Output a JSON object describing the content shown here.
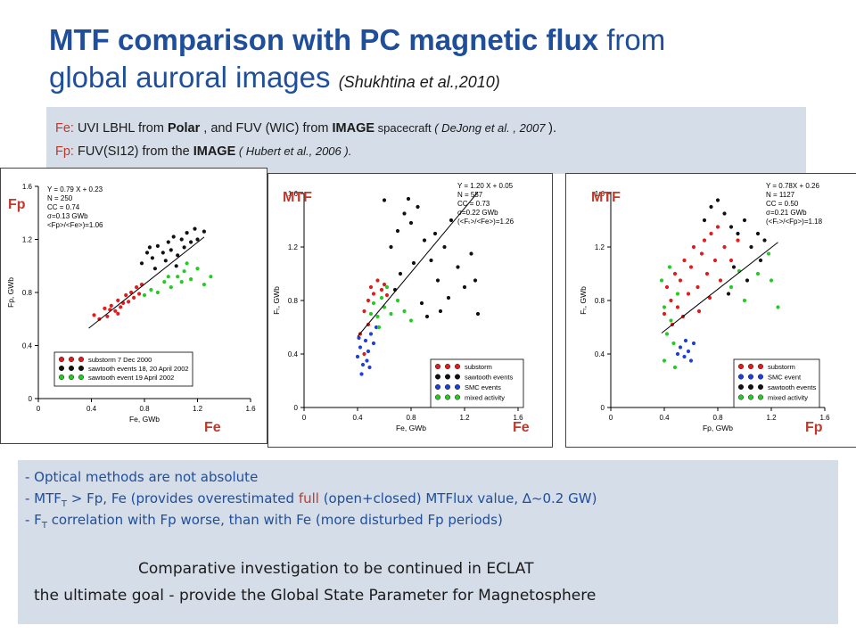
{
  "title": {
    "bold": "MTF comparison with PC magnetic flux",
    "rest1": " from",
    "line2": "global auroral images",
    "cite": "(Shukhtina et al.,2010)"
  },
  "sources": {
    "fe_key": "Fe:",
    "fe_text1": "  UVI LBHL from ",
    "fe_polar": "Polar",
    "fe_text2": " , and FUV (WIC) from ",
    "fe_image": "IMAGE",
    "fe_text3": " spacecraft ",
    "fe_cite": "( DeJong et al. , 2007 ",
    "fe_end": ").",
    "fp_key": "Fp:",
    "fp_text1": "  FUV(SI12) from the ",
    "fp_image": "IMAGE",
    "fp_cite": "  ( Hubert et al., 2006 )."
  },
  "panels": [
    {
      "top_label": "Fp",
      "bottom_label": "Fe"
    },
    {
      "top_label": "MTF",
      "bottom_label": "Fe"
    },
    {
      "top_label": "MTF",
      "bottom_label": "Fp"
    }
  ],
  "notes": {
    "n1": "-  Optical methods are not absolute",
    "n2a": "-  MTF",
    "n2sub": "T",
    "n2b": " > Fp, Fe  (provides overestimated ",
    "n2red": "full",
    "n2c": " (open+closed)  MTFlux value, ∆~0.2 GW)",
    "n3a": "-  F",
    "n3sub": "T",
    "n3b": " correlation with Fp worse, than with Fe (more disturbed Fp periods)",
    "c1": "Comparative investigation to be continued in ECLAT",
    "c2": "the ultimate goal  -   provide the   Global State Parameter  for Magnetosphere"
  },
  "colors": {
    "red": "#e41a1c",
    "black": "#111111",
    "blue": "#1f3fd6",
    "green": "#22cc22"
  },
  "chart_data": [
    {
      "type": "scatter",
      "xlabel": "Fe, GWb",
      "ylabel": "Fp, GWb",
      "xlim": [
        0,
        1.6
      ],
      "ylim": [
        0,
        1.6
      ],
      "xticks": [
        "0",
        "0.4",
        "0.8",
        "1.2",
        "1.6"
      ],
      "yticks": [
        "0",
        "0.4",
        "0.8",
        "1.2",
        "1.6"
      ],
      "stats": [
        "Y = 0.79 X + 0.23",
        "N = 250",
        "CC = 0.74",
        "σ=0.13 GWb",
        "<Fp>/<Fe>)=1.06"
      ],
      "fit": {
        "slope": 0.79,
        "intercept": 0.23,
        "x0": 0.38,
        "x1": 1.25
      },
      "legend": [
        "substorm 7 Dec 2000",
        "sawtooth events 18, 20 April 2002",
        "sawtooth event 19 April 2002"
      ],
      "series": [
        {
          "name": "substorm 7 Dec 2000",
          "color": "red",
          "points": [
            [
              0.42,
              0.63
            ],
            [
              0.46,
              0.6
            ],
            [
              0.5,
              0.68
            ],
            [
              0.52,
              0.62
            ],
            [
              0.55,
              0.7
            ],
            [
              0.58,
              0.66
            ],
            [
              0.6,
              0.74
            ],
            [
              0.62,
              0.69
            ],
            [
              0.64,
              0.72
            ],
            [
              0.66,
              0.78
            ],
            [
              0.68,
              0.73
            ],
            [
              0.7,
              0.8
            ],
            [
              0.72,
              0.76
            ],
            [
              0.74,
              0.84
            ],
            [
              0.76,
              0.79
            ],
            [
              0.78,
              0.86
            ],
            [
              0.6,
              0.64
            ],
            [
              0.54,
              0.67
            ]
          ]
        },
        {
          "name": "sawtooth events 18, 20 April 2002",
          "color": "black",
          "points": [
            [
              0.78,
              1.02
            ],
            [
              0.82,
              1.1
            ],
            [
              0.86,
              1.06
            ],
            [
              0.9,
              1.15
            ],
            [
              0.94,
              1.1
            ],
            [
              0.98,
              1.18
            ],
            [
              1.0,
              1.12
            ],
            [
              1.02,
              1.22
            ],
            [
              1.05,
              1.08
            ],
            [
              1.08,
              1.2
            ],
            [
              1.1,
              1.14
            ],
            [
              1.12,
              1.25
            ],
            [
              1.15,
              1.18
            ],
            [
              1.18,
              1.28
            ],
            [
              0.88,
              0.98
            ],
            [
              0.96,
              1.04
            ],
            [
              1.04,
              1.0
            ],
            [
              1.2,
              1.2
            ],
            [
              1.25,
              1.26
            ],
            [
              0.84,
              1.14
            ]
          ]
        },
        {
          "name": "sawtooth event 19 April 2002",
          "color": "green",
          "points": [
            [
              0.8,
              0.78
            ],
            [
              0.85,
              0.82
            ],
            [
              0.9,
              0.8
            ],
            [
              0.95,
              0.88
            ],
            [
              1.0,
              0.84
            ],
            [
              1.05,
              0.92
            ],
            [
              1.1,
              0.96
            ],
            [
              1.15,
              0.9
            ],
            [
              1.2,
              0.98
            ],
            [
              1.25,
              0.86
            ],
            [
              1.3,
              0.92
            ],
            [
              1.12,
              1.02
            ],
            [
              0.98,
              0.92
            ],
            [
              1.08,
              0.88
            ]
          ]
        }
      ]
    },
    {
      "type": "scatter",
      "xlabel": "Fe, GWb",
      "ylabel": "Fₜ, GWb",
      "xlim": [
        0,
        1.6
      ],
      "ylim": [
        0,
        1.6
      ],
      "xticks": [
        "0",
        "0.4",
        "0.8",
        "1.2",
        "1.6"
      ],
      "yticks": [
        "0",
        "0.4",
        "0.8",
        "1.2",
        "1.6"
      ],
      "stats": [
        "Y = 1.20 X + 0.05",
        "N = 557",
        "CC = 0.73",
        "σ=0.22 GWb",
        "(<Fₜ>/<Fe>)=1.26"
      ],
      "fit": {
        "slope": 1.2,
        "intercept": 0.05,
        "x0": 0.4,
        "x1": 1.3
      },
      "legend": [
        "substorm",
        "sawtooth events",
        "SMC events",
        "mixed activity"
      ],
      "series": [
        {
          "name": "substorm",
          "color": "red",
          "points": [
            [
              0.42,
              0.55
            ],
            [
              0.45,
              0.72
            ],
            [
              0.48,
              0.8
            ],
            [
              0.5,
              0.9
            ],
            [
              0.52,
              0.85
            ],
            [
              0.55,
              0.95
            ],
            [
              0.58,
              0.88
            ],
            [
              0.6,
              0.92
            ],
            [
              0.45,
              0.4
            ],
            [
              0.48,
              0.62
            ],
            [
              0.62,
              0.84
            ]
          ]
        },
        {
          "name": "sawtooth events",
          "color": "black",
          "points": [
            [
              0.65,
              1.2
            ],
            [
              0.7,
              1.32
            ],
            [
              0.75,
              1.45
            ],
            [
              0.8,
              1.38
            ],
            [
              0.85,
              1.5
            ],
            [
              0.9,
              1.25
            ],
            [
              0.95,
              1.1
            ],
            [
              1.0,
              0.95
            ],
            [
              1.05,
              1.2
            ],
            [
              1.1,
              1.4
            ],
            [
              1.15,
              1.05
            ],
            [
              1.2,
              0.9
            ],
            [
              1.25,
              1.15
            ],
            [
              1.3,
              0.7
            ],
            [
              0.82,
              1.08
            ],
            [
              0.88,
              0.78
            ],
            [
              0.92,
              0.68
            ],
            [
              0.98,
              1.3
            ],
            [
              1.02,
              0.72
            ],
            [
              0.72,
              1.0
            ],
            [
              0.6,
              1.55
            ],
            [
              0.78,
              1.56
            ],
            [
              1.08,
              0.82
            ],
            [
              0.68,
              0.88
            ],
            [
              1.28,
              0.95
            ]
          ]
        },
        {
          "name": "SMC events",
          "color": "blue",
          "points": [
            [
              0.4,
              0.38
            ],
            [
              0.42,
              0.45
            ],
            [
              0.44,
              0.32
            ],
            [
              0.46,
              0.5
            ],
            [
              0.48,
              0.42
            ],
            [
              0.5,
              0.55
            ],
            [
              0.52,
              0.48
            ],
            [
              0.54,
              0.6
            ],
            [
              0.43,
              0.25
            ],
            [
              0.47,
              0.35
            ],
            [
              0.41,
              0.52
            ],
            [
              0.49,
              0.3
            ]
          ]
        },
        {
          "name": "mixed activity",
          "color": "green",
          "points": [
            [
              0.5,
              0.7
            ],
            [
              0.52,
              0.78
            ],
            [
              0.55,
              0.68
            ],
            [
              0.58,
              0.82
            ],
            [
              0.6,
              0.75
            ],
            [
              0.65,
              0.7
            ],
            [
              0.7,
              0.8
            ],
            [
              0.75,
              0.72
            ],
            [
              0.8,
              0.65
            ],
            [
              0.56,
              0.6
            ],
            [
              0.62,
              0.9
            ]
          ]
        }
      ]
    },
    {
      "type": "scatter",
      "xlabel": "Fp, GWb",
      "ylabel": "Fₜ, GWb",
      "xlim": [
        0,
        1.6
      ],
      "ylim": [
        0,
        1.6
      ],
      "xticks": [
        "0",
        "0.4",
        "0.8",
        "1.2",
        "1.6"
      ],
      "yticks": [
        "0",
        "0.4",
        "0.8",
        "1.2",
        "1.6"
      ],
      "stats": [
        "Y = 0.78X + 0.26",
        "N = 1127",
        "CC = 0.50",
        "σ=0.21 GWb",
        "(<Fₜ>/<Fp>)=1.18"
      ],
      "fit": {
        "slope": 0.78,
        "intercept": 0.26,
        "x0": 0.38,
        "x1": 1.25
      },
      "legend": [
        "substorm",
        "SMC event",
        "sawtooth events",
        "mixed activity"
      ],
      "series": [
        {
          "name": "substorm",
          "color": "red",
          "points": [
            [
              0.4,
              0.7
            ],
            [
              0.42,
              0.9
            ],
            [
              0.45,
              0.8
            ],
            [
              0.48,
              1.0
            ],
            [
              0.5,
              0.75
            ],
            [
              0.52,
              0.95
            ],
            [
              0.55,
              1.1
            ],
            [
              0.58,
              0.85
            ],
            [
              0.6,
              1.05
            ],
            [
              0.62,
              1.2
            ],
            [
              0.65,
              0.9
            ],
            [
              0.68,
              1.15
            ],
            [
              0.7,
              1.25
            ],
            [
              0.72,
              1.0
            ],
            [
              0.75,
              1.3
            ],
            [
              0.78,
              1.1
            ],
            [
              0.8,
              1.35
            ],
            [
              0.85,
              1.2
            ],
            [
              0.9,
              1.1
            ],
            [
              0.95,
              1.25
            ],
            [
              0.46,
              0.62
            ],
            [
              0.54,
              0.68
            ],
            [
              0.66,
              0.72
            ],
            [
              0.74,
              0.82
            ],
            [
              0.82,
              0.95
            ]
          ]
        },
        {
          "name": "SMC event",
          "color": "blue",
          "points": [
            [
              0.5,
              0.4
            ],
            [
              0.52,
              0.45
            ],
            [
              0.55,
              0.38
            ],
            [
              0.58,
              0.42
            ],
            [
              0.6,
              0.35
            ],
            [
              0.62,
              0.48
            ],
            [
              0.56,
              0.5
            ]
          ]
        },
        {
          "name": "sawtooth events",
          "color": "black",
          "points": [
            [
              0.7,
              1.4
            ],
            [
              0.75,
              1.5
            ],
            [
              0.8,
              1.55
            ],
            [
              0.85,
              1.45
            ],
            [
              0.9,
              1.35
            ],
            [
              0.95,
              1.3
            ],
            [
              1.0,
              1.4
            ],
            [
              1.05,
              1.2
            ],
            [
              1.1,
              1.3
            ],
            [
              1.15,
              1.25
            ],
            [
              0.92,
              1.05
            ],
            [
              1.02,
              0.95
            ],
            [
              0.88,
              0.85
            ],
            [
              1.12,
              1.1
            ]
          ]
        },
        {
          "name": "mixed activity",
          "color": "green",
          "points": [
            [
              0.4,
              0.35
            ],
            [
              0.42,
              0.55
            ],
            [
              0.45,
              0.65
            ],
            [
              0.48,
              0.3
            ],
            [
              0.5,
              0.85
            ],
            [
              0.38,
              0.95
            ],
            [
              0.44,
              1.05
            ],
            [
              0.9,
              0.9
            ],
            [
              1.0,
              0.8
            ],
            [
              1.1,
              1.0
            ],
            [
              1.2,
              0.95
            ],
            [
              1.25,
              0.75
            ],
            [
              1.18,
              1.15
            ],
            [
              0.96,
              1.02
            ],
            [
              0.4,
              0.75
            ],
            [
              0.47,
              0.48
            ]
          ]
        }
      ]
    }
  ]
}
